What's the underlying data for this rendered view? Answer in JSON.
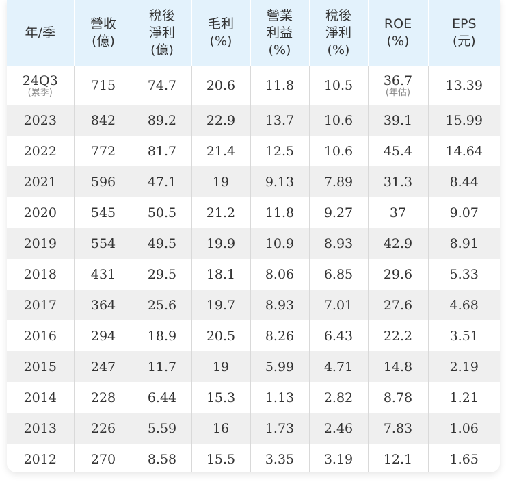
{
  "headers": [
    "年/季",
    "營收\n(億)",
    "稅後\n淨利\n(億)",
    "毛利\n(%)",
    "營業\n利益\n(%)",
    "稅後\n淨利\n(%)",
    "ROE\n(%)",
    "EPS\n(元)"
  ],
  "first_row": {
    "period": "24Q3",
    "period_note": "(累季)",
    "revenue": "715",
    "net_income": "74.7",
    "gross_margin": "20.6",
    "operating_margin": "11.8",
    "net_margin": "10.5",
    "roe": "36.7",
    "roe_note": "(年估)",
    "eps": "13.39"
  },
  "rows": [
    [
      "2023",
      "842",
      "89.2",
      "22.9",
      "13.7",
      "10.6",
      "39.1",
      "15.99"
    ],
    [
      "2022",
      "772",
      "81.7",
      "21.4",
      "12.5",
      "10.6",
      "45.4",
      "14.64"
    ],
    [
      "2021",
      "596",
      "47.1",
      "19",
      "9.13",
      "7.89",
      "31.3",
      "8.44"
    ],
    [
      "2020",
      "545",
      "50.5",
      "21.2",
      "11.8",
      "9.27",
      "37",
      "9.07"
    ],
    [
      "2019",
      "554",
      "49.5",
      "19.9",
      "10.9",
      "8.93",
      "42.9",
      "8.91"
    ],
    [
      "2018",
      "431",
      "29.5",
      "18.1",
      "8.06",
      "6.85",
      "29.6",
      "5.33"
    ],
    [
      "2017",
      "364",
      "25.6",
      "19.7",
      "8.93",
      "7.01",
      "27.6",
      "4.68"
    ],
    [
      "2016",
      "294",
      "18.9",
      "20.5",
      "8.26",
      "6.43",
      "22.2",
      "3.51"
    ],
    [
      "2015",
      "247",
      "11.7",
      "19",
      "5.99",
      "4.71",
      "14.8",
      "2.19"
    ],
    [
      "2014",
      "228",
      "6.44",
      "15.3",
      "1.13",
      "2.82",
      "8.78",
      "1.21"
    ],
    [
      "2013",
      "226",
      "5.59",
      "16",
      "1.73",
      "2.46",
      "7.83",
      "1.06"
    ],
    [
      "2012",
      "270",
      "8.58",
      "15.5",
      "3.35",
      "3.19",
      "12.1",
      "1.65"
    ]
  ]
}
